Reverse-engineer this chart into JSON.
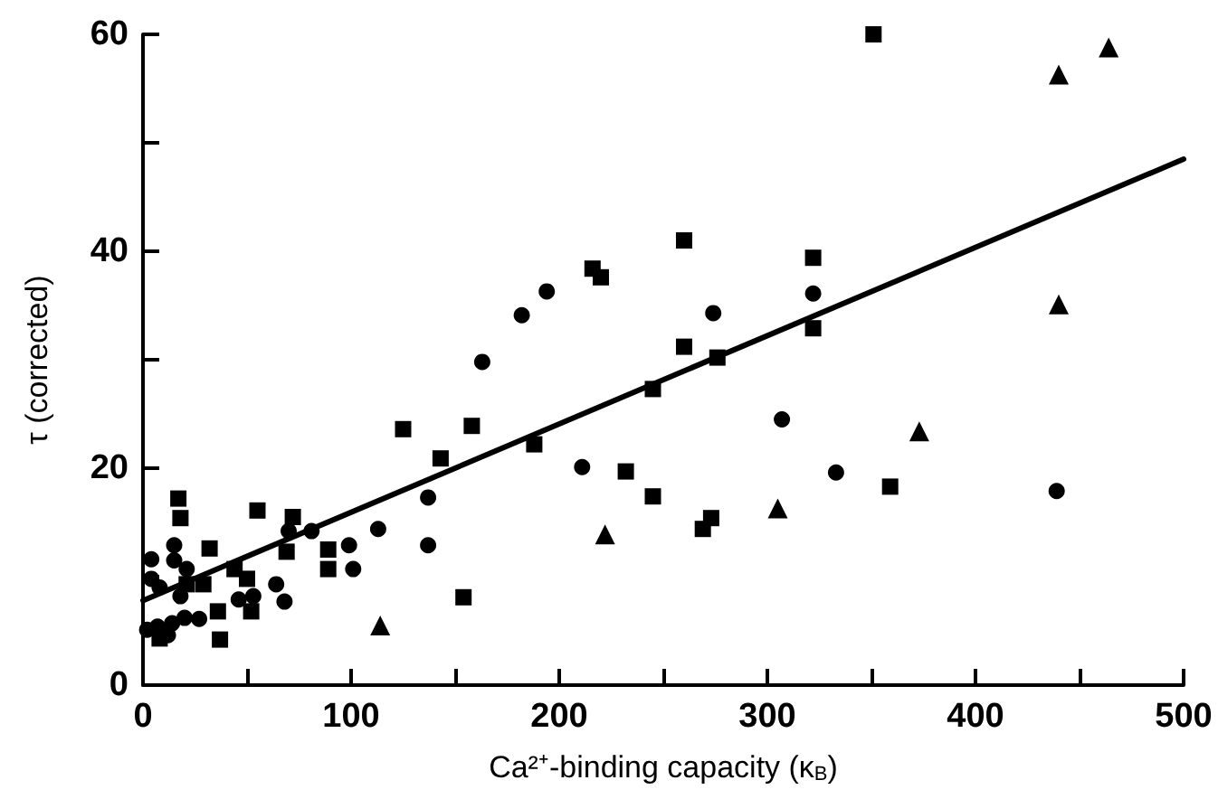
{
  "chart_data": {
    "type": "scatter",
    "xlabel": "Ca²⁺-binding capacity (κ$_{B}$)",
    "ylabel": "τ (corrected)",
    "xlim": [
      0,
      500
    ],
    "xticks": [
      0,
      {
        "value": 50,
        "label": null
      },
      100,
      {
        "value": 150,
        "label": null
      },
      200,
      {
        "value": 250,
        "label": null
      },
      300,
      {
        "value": 350,
        "label": null
      },
      400,
      {
        "value": 450,
        "label": null
      },
      500
    ],
    "ylim": [
      0,
      60
    ],
    "yticks": [
      0,
      {
        "value": 10,
        "label": null
      },
      20,
      {
        "value": 30,
        "label": null
      },
      40,
      {
        "value": 50,
        "label": null
      },
      60
    ],
    "grid": false,
    "series": [
      {
        "marker": "square",
        "color": "#000000",
        "x": [
          351,
          260,
          216,
          220,
          322,
          260,
          276,
          322,
          245,
          188,
          158,
          143,
          125,
          232,
          245,
          359,
          273,
          269,
          154,
          17,
          18,
          55,
          72,
          32,
          89,
          89,
          44,
          50,
          29,
          36,
          52,
          37,
          8,
          21,
          69
        ],
        "values": [
          60,
          41,
          38.4,
          37.6,
          39.4,
          31.2,
          30.2,
          32.9,
          27.3,
          22.2,
          23.9,
          20.9,
          23.6,
          19.7,
          17.4,
          18.3,
          15.4,
          14.4,
          8.1,
          17.2,
          15.4,
          16.1,
          15.5,
          12.6,
          12.5,
          10.7,
          10.7,
          9.8,
          9.3,
          6.8,
          6.8,
          4.2,
          4.3,
          9.3,
          12.3
        ]
      },
      {
        "marker": "circle",
        "color": "#000000",
        "x": [
          194,
          182,
          163,
          274,
          322,
          307,
          211,
          333,
          439,
          137,
          113,
          137,
          4,
          15,
          15,
          99,
          101,
          81,
          70,
          68,
          64,
          7,
          14,
          20,
          27,
          4,
          8,
          18,
          53,
          46,
          21,
          12,
          2
        ],
        "values": [
          36.3,
          34.1,
          29.8,
          34.3,
          36.1,
          24.5,
          20.1,
          19.6,
          17.9,
          17.3,
          14.4,
          12.9,
          11.6,
          12.9,
          11.5,
          12.9,
          10.7,
          14.2,
          14.2,
          7.7,
          9.3,
          5.4,
          5.7,
          6.2,
          6.1,
          9.8,
          9,
          8.2,
          8.2,
          7.9,
          10.7,
          4.6,
          5.1
        ]
      },
      {
        "marker": "triangle",
        "color": "#000000",
        "x": [
          464,
          440,
          440,
          373,
          305,
          222,
          114
        ],
        "values": [
          58.8,
          56.3,
          35.1,
          23.4,
          16.3,
          13.9,
          5.5
        ]
      },
      {
        "type": "line",
        "marker": "none",
        "line_style": "solid",
        "color": "#000000",
        "x": [
          0,
          500
        ],
        "values": [
          7.8,
          48.5
        ]
      }
    ]
  }
}
